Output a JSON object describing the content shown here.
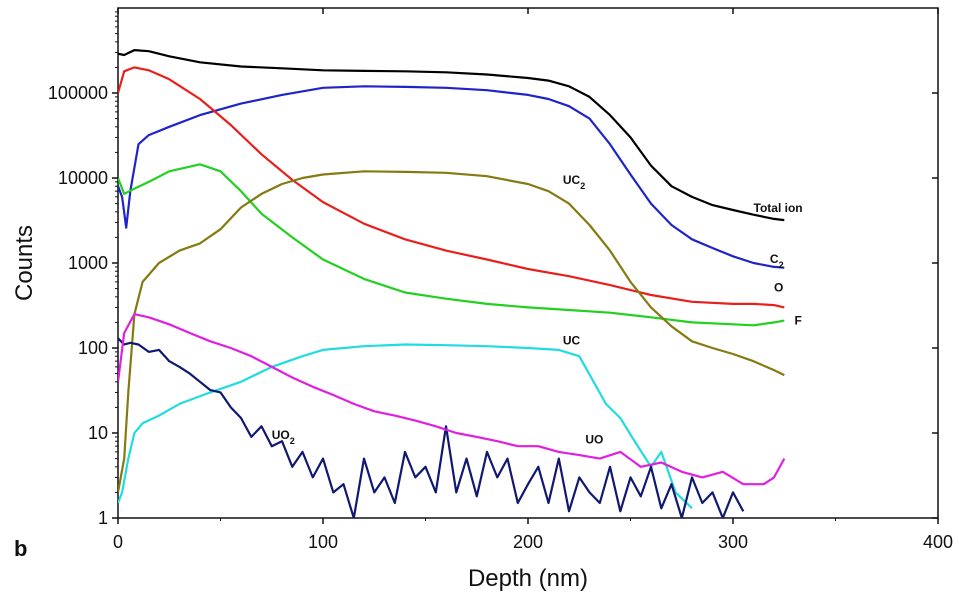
{
  "chart_data": {
    "type": "line",
    "panel_label": "b",
    "title": "",
    "xlabel": "Depth (nm)",
    "ylabel": "Counts",
    "xlim": [
      0,
      400
    ],
    "ylim": [
      1,
      1000000
    ],
    "y_scale": "log",
    "x_ticks": [
      "0",
      "100",
      "200",
      "300",
      "400"
    ],
    "y_ticks": [
      "1",
      "10",
      "100",
      "1000",
      "10000",
      "100000"
    ],
    "grid": false,
    "series": [
      {
        "name": "Total ion",
        "color": "#000000",
        "x": [
          0,
          3,
          8,
          15,
          25,
          40,
          60,
          80,
          100,
          120,
          140,
          160,
          180,
          200,
          210,
          220,
          230,
          240,
          250,
          260,
          270,
          280,
          290,
          300,
          310,
          320,
          325
        ],
        "y": [
          290000,
          280000,
          320000,
          310000,
          270000,
          230000,
          205000,
          195000,
          185000,
          182000,
          180000,
          175000,
          165000,
          150000,
          140000,
          120000,
          90000,
          55000,
          30000,
          14000,
          8000,
          6000,
          4800,
          4200,
          3700,
          3300,
          3200
        ]
      },
      {
        "name": "C2",
        "color": "#1f24c8",
        "x": [
          0,
          2,
          4,
          6,
          10,
          15,
          25,
          40,
          60,
          80,
          100,
          120,
          140,
          160,
          180,
          200,
          210,
          220,
          230,
          240,
          250,
          260,
          270,
          280,
          290,
          300,
          310,
          320,
          325
        ],
        "y": [
          8000,
          6000,
          2600,
          7000,
          25000,
          32000,
          40000,
          55000,
          75000,
          95000,
          115000,
          120000,
          118000,
          115000,
          108000,
          95000,
          85000,
          70000,
          50000,
          25000,
          11000,
          5000,
          2800,
          1900,
          1500,
          1200,
          1000,
          900,
          880
        ]
      },
      {
        "name": "O",
        "color": "#e8201c",
        "x": [
          0,
          3,
          8,
          15,
          25,
          40,
          55,
          70,
          85,
          100,
          120,
          140,
          160,
          180,
          200,
          220,
          240,
          260,
          280,
          300,
          310,
          320,
          325
        ],
        "y": [
          100000,
          180000,
          200000,
          185000,
          145000,
          85000,
          42000,
          19000,
          9500,
          5200,
          2900,
          1900,
          1400,
          1100,
          850,
          700,
          550,
          420,
          350,
          330,
          330,
          320,
          300
        ]
      },
      {
        "name": "F",
        "color": "#22d020",
        "x": [
          0,
          3,
          8,
          15,
          25,
          40,
          50,
          60,
          70,
          85,
          100,
          120,
          140,
          160,
          180,
          200,
          220,
          240,
          260,
          280,
          300,
          310,
          320,
          325
        ],
        "y": [
          10000,
          6500,
          7500,
          9000,
          12000,
          14500,
          12000,
          7000,
          3800,
          2000,
          1100,
          650,
          450,
          380,
          330,
          300,
          280,
          260,
          230,
          200,
          190,
          185,
          200,
          210
        ]
      },
      {
        "name": "UC2",
        "color": "#857a10",
        "x": [
          0,
          3,
          5,
          8,
          12,
          20,
          30,
          40,
          50,
          60,
          70,
          80,
          90,
          100,
          120,
          140,
          160,
          180,
          200,
          210,
          220,
          230,
          240,
          250,
          260,
          270,
          280,
          290,
          300,
          310,
          320,
          325
        ],
        "y": [
          2,
          5,
          30,
          250,
          600,
          1000,
          1400,
          1700,
          2500,
          4500,
          6500,
          8500,
          10000,
          11000,
          12000,
          11800,
          11500,
          10500,
          8500,
          7000,
          5000,
          2800,
          1400,
          600,
          300,
          180,
          120,
          100,
          85,
          70,
          55,
          48
        ]
      },
      {
        "name": "UC",
        "color": "#20dce0",
        "x": [
          0,
          2,
          5,
          8,
          12,
          20,
          30,
          45,
          60,
          75,
          90,
          100,
          120,
          140,
          160,
          180,
          200,
          215,
          225,
          232,
          238,
          245,
          252,
          260,
          265,
          272,
          280
        ],
        "y": [
          1.5,
          2,
          5,
          10,
          13,
          16,
          22,
          30,
          40,
          60,
          80,
          95,
          105,
          110,
          108,
          105,
          100,
          95,
          80,
          40,
          22,
          15,
          8,
          4,
          6,
          2,
          1.3
        ]
      },
      {
        "name": "UO2",
        "color": "#101870",
        "x": [
          0,
          3,
          6,
          10,
          15,
          20,
          25,
          30,
          35,
          40,
          45,
          50,
          55,
          60,
          65,
          70,
          75,
          80,
          85,
          90,
          95,
          100,
          105,
          110,
          115,
          120,
          125,
          130,
          135,
          140,
          145,
          150,
          155,
          160,
          165,
          170,
          175,
          180,
          185,
          190,
          195,
          200,
          205,
          210,
          215,
          220,
          225,
          230,
          235,
          240,
          245,
          250,
          255,
          260,
          265,
          270,
          275,
          280,
          285,
          290,
          295,
          300,
          305
        ],
        "y": [
          130,
          110,
          115,
          110,
          90,
          95,
          70,
          60,
          50,
          40,
          32,
          30,
          20,
          15,
          9,
          12,
          7,
          8,
          4,
          6,
          3,
          5,
          2,
          2.5,
          1,
          5,
          2,
          3,
          1.5,
          6,
          3,
          4,
          2,
          12,
          2,
          5,
          1.8,
          6,
          3,
          5,
          1.5,
          2.5,
          4,
          1.5,
          5,
          1.2,
          3,
          2,
          1.5,
          4,
          1.2,
          3,
          1.8,
          4,
          1.3,
          2.5,
          1,
          3,
          1.5,
          2,
          1,
          2,
          1.2
        ]
      },
      {
        "name": "UO",
        "color": "#e020e0",
        "x": [
          0,
          3,
          8,
          15,
          25,
          35,
          45,
          55,
          65,
          75,
          85,
          95,
          105,
          115,
          125,
          135,
          145,
          155,
          165,
          175,
          185,
          195,
          205,
          215,
          225,
          235,
          245,
          255,
          265,
          275,
          285,
          295,
          305,
          315,
          320,
          325
        ],
        "y": [
          40,
          150,
          250,
          230,
          190,
          150,
          120,
          100,
          80,
          60,
          45,
          35,
          28,
          22,
          18,
          16,
          14,
          12,
          10,
          9,
          8,
          7,
          7,
          6,
          5.5,
          5,
          6,
          4,
          4.5,
          3.5,
          3,
          3.5,
          2.5,
          2.5,
          3,
          5
        ]
      }
    ],
    "labels": [
      {
        "text": "Total ion",
        "series": "Total ion",
        "x": 310,
        "y": 4000
      },
      {
        "text": "C",
        "sub": "2",
        "series": "C2",
        "x": 318,
        "y": 1000
      },
      {
        "text": "O",
        "series": "O",
        "x": 320,
        "y": 460
      },
      {
        "text": "F",
        "series": "F",
        "x": 330,
        "y": 190
      },
      {
        "text": "UC",
        "sub": "2",
        "series": "UC2",
        "x": 217,
        "y": 8500
      },
      {
        "text": "UC",
        "series": "UC",
        "x": 217,
        "y": 110
      },
      {
        "text": "UO",
        "sub": "2",
        "series": "UO2",
        "x": 75,
        "y": 8.5
      },
      {
        "text": "UO",
        "series": "UO",
        "x": 228,
        "y": 7.5
      }
    ]
  }
}
